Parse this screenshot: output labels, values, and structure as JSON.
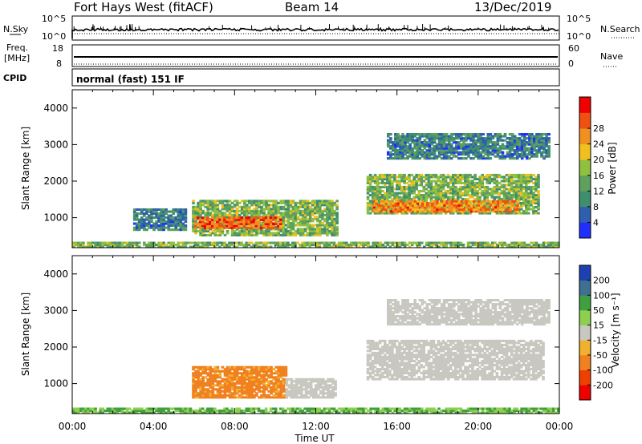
{
  "header": {
    "station": "Fort Hays West (fitACF)",
    "beam": "Beam 14",
    "date": "13/Dec/2019"
  },
  "noise_panel": {
    "left_label": "N.Sky",
    "right_label": "N.Search",
    "left_ticks": [
      "10^5",
      "10^0"
    ],
    "right_ticks": [
      "10^5",
      "10^0"
    ]
  },
  "freq_panel": {
    "left_label_1": "Freq.",
    "left_label_2": "[MHz]",
    "right_label": "Nave",
    "left_ticks": [
      "18",
      "8"
    ],
    "right_ticks": [
      "60",
      "0"
    ]
  },
  "cpid": {
    "label": "CPID",
    "text": "normal (fast) 151 IF"
  },
  "colors": {
    "power": [
      "#1f2fff",
      "#2f5faf",
      "#3f8f6f",
      "#5fa05f",
      "#90c040",
      "#f0c020",
      "#f09020",
      "#f05010",
      "#f00000"
    ],
    "velocity": [
      "#ee0000",
      "#f04000",
      "#f08020",
      "#f0b030",
      "#c8c8c0",
      "#8fcf50",
      "#40a040",
      "#3f7090",
      "#1f40b0"
    ]
  },
  "chart_data": [
    {
      "type": "heatmap",
      "panel": "power",
      "ylabel": "Slant Range [km]",
      "ylim": [
        180,
        4500
      ],
      "yticks": [
        "1000",
        "2000",
        "3000",
        "4000"
      ],
      "xlim": [
        "00:00",
        "24:00"
      ],
      "colorbar_label": "Power [dB]",
      "colorbar_ticks": [
        "4",
        "8",
        "12",
        "16",
        "20",
        "24",
        "28"
      ],
      "colorbar_range": [
        0,
        32
      ],
      "regions": [
        {
          "t0": 0,
          "t1": 24,
          "r0": 180,
          "r1": 330,
          "value": 14
        },
        {
          "t0": 5.9,
          "t1": 13.0,
          "r0": 500,
          "r1": 1450,
          "value": 14
        },
        {
          "t0": 6.0,
          "t1": 10.2,
          "r0": 700,
          "r1": 1000,
          "value": 26
        },
        {
          "t0": 14.5,
          "t1": 23.0,
          "r0": 1100,
          "r1": 2200,
          "value": 14
        },
        {
          "t0": 14.8,
          "t1": 22.0,
          "r0": 1150,
          "r1": 1450,
          "value": 24
        },
        {
          "t0": 3.0,
          "t1": 5.6,
          "r0": 650,
          "r1": 1250,
          "value": 8
        },
        {
          "t0": 15.5,
          "t1": 23.5,
          "r0": 2600,
          "r1": 3300,
          "value": 8
        }
      ]
    },
    {
      "type": "heatmap",
      "panel": "velocity",
      "ylabel": "Slant Range [km]",
      "ylim": [
        180,
        4500
      ],
      "yticks": [
        "1000",
        "2000",
        "3000",
        "4000"
      ],
      "xlim": [
        "00:00",
        "24:00"
      ],
      "xticks": [
        "00:00",
        "04:00",
        "08:00",
        "12:00",
        "16:00",
        "20:00",
        "00:00"
      ],
      "xlabel": "Time UT",
      "colorbar_label": "Velocity [m s⁻¹]",
      "colorbar_ticks": [
        "-200",
        "-100",
        "-50",
        "-15",
        "15",
        "50",
        "100",
        "200"
      ],
      "regions": [
        {
          "t0": 0,
          "t1": 24,
          "r0": 180,
          "r1": 330,
          "value": 50
        },
        {
          "t0": 5.9,
          "t1": 10.5,
          "r0": 600,
          "r1": 1450,
          "value": -60
        },
        {
          "t0": 10.5,
          "t1": 13.0,
          "r0": 600,
          "r1": 1150,
          "value": 0
        },
        {
          "t0": 14.5,
          "t1": 23.2,
          "r0": 1100,
          "r1": 2200,
          "value": 0
        },
        {
          "t0": 15.5,
          "t1": 23.5,
          "r0": 2600,
          "r1": 3300,
          "value": 0
        }
      ]
    }
  ]
}
